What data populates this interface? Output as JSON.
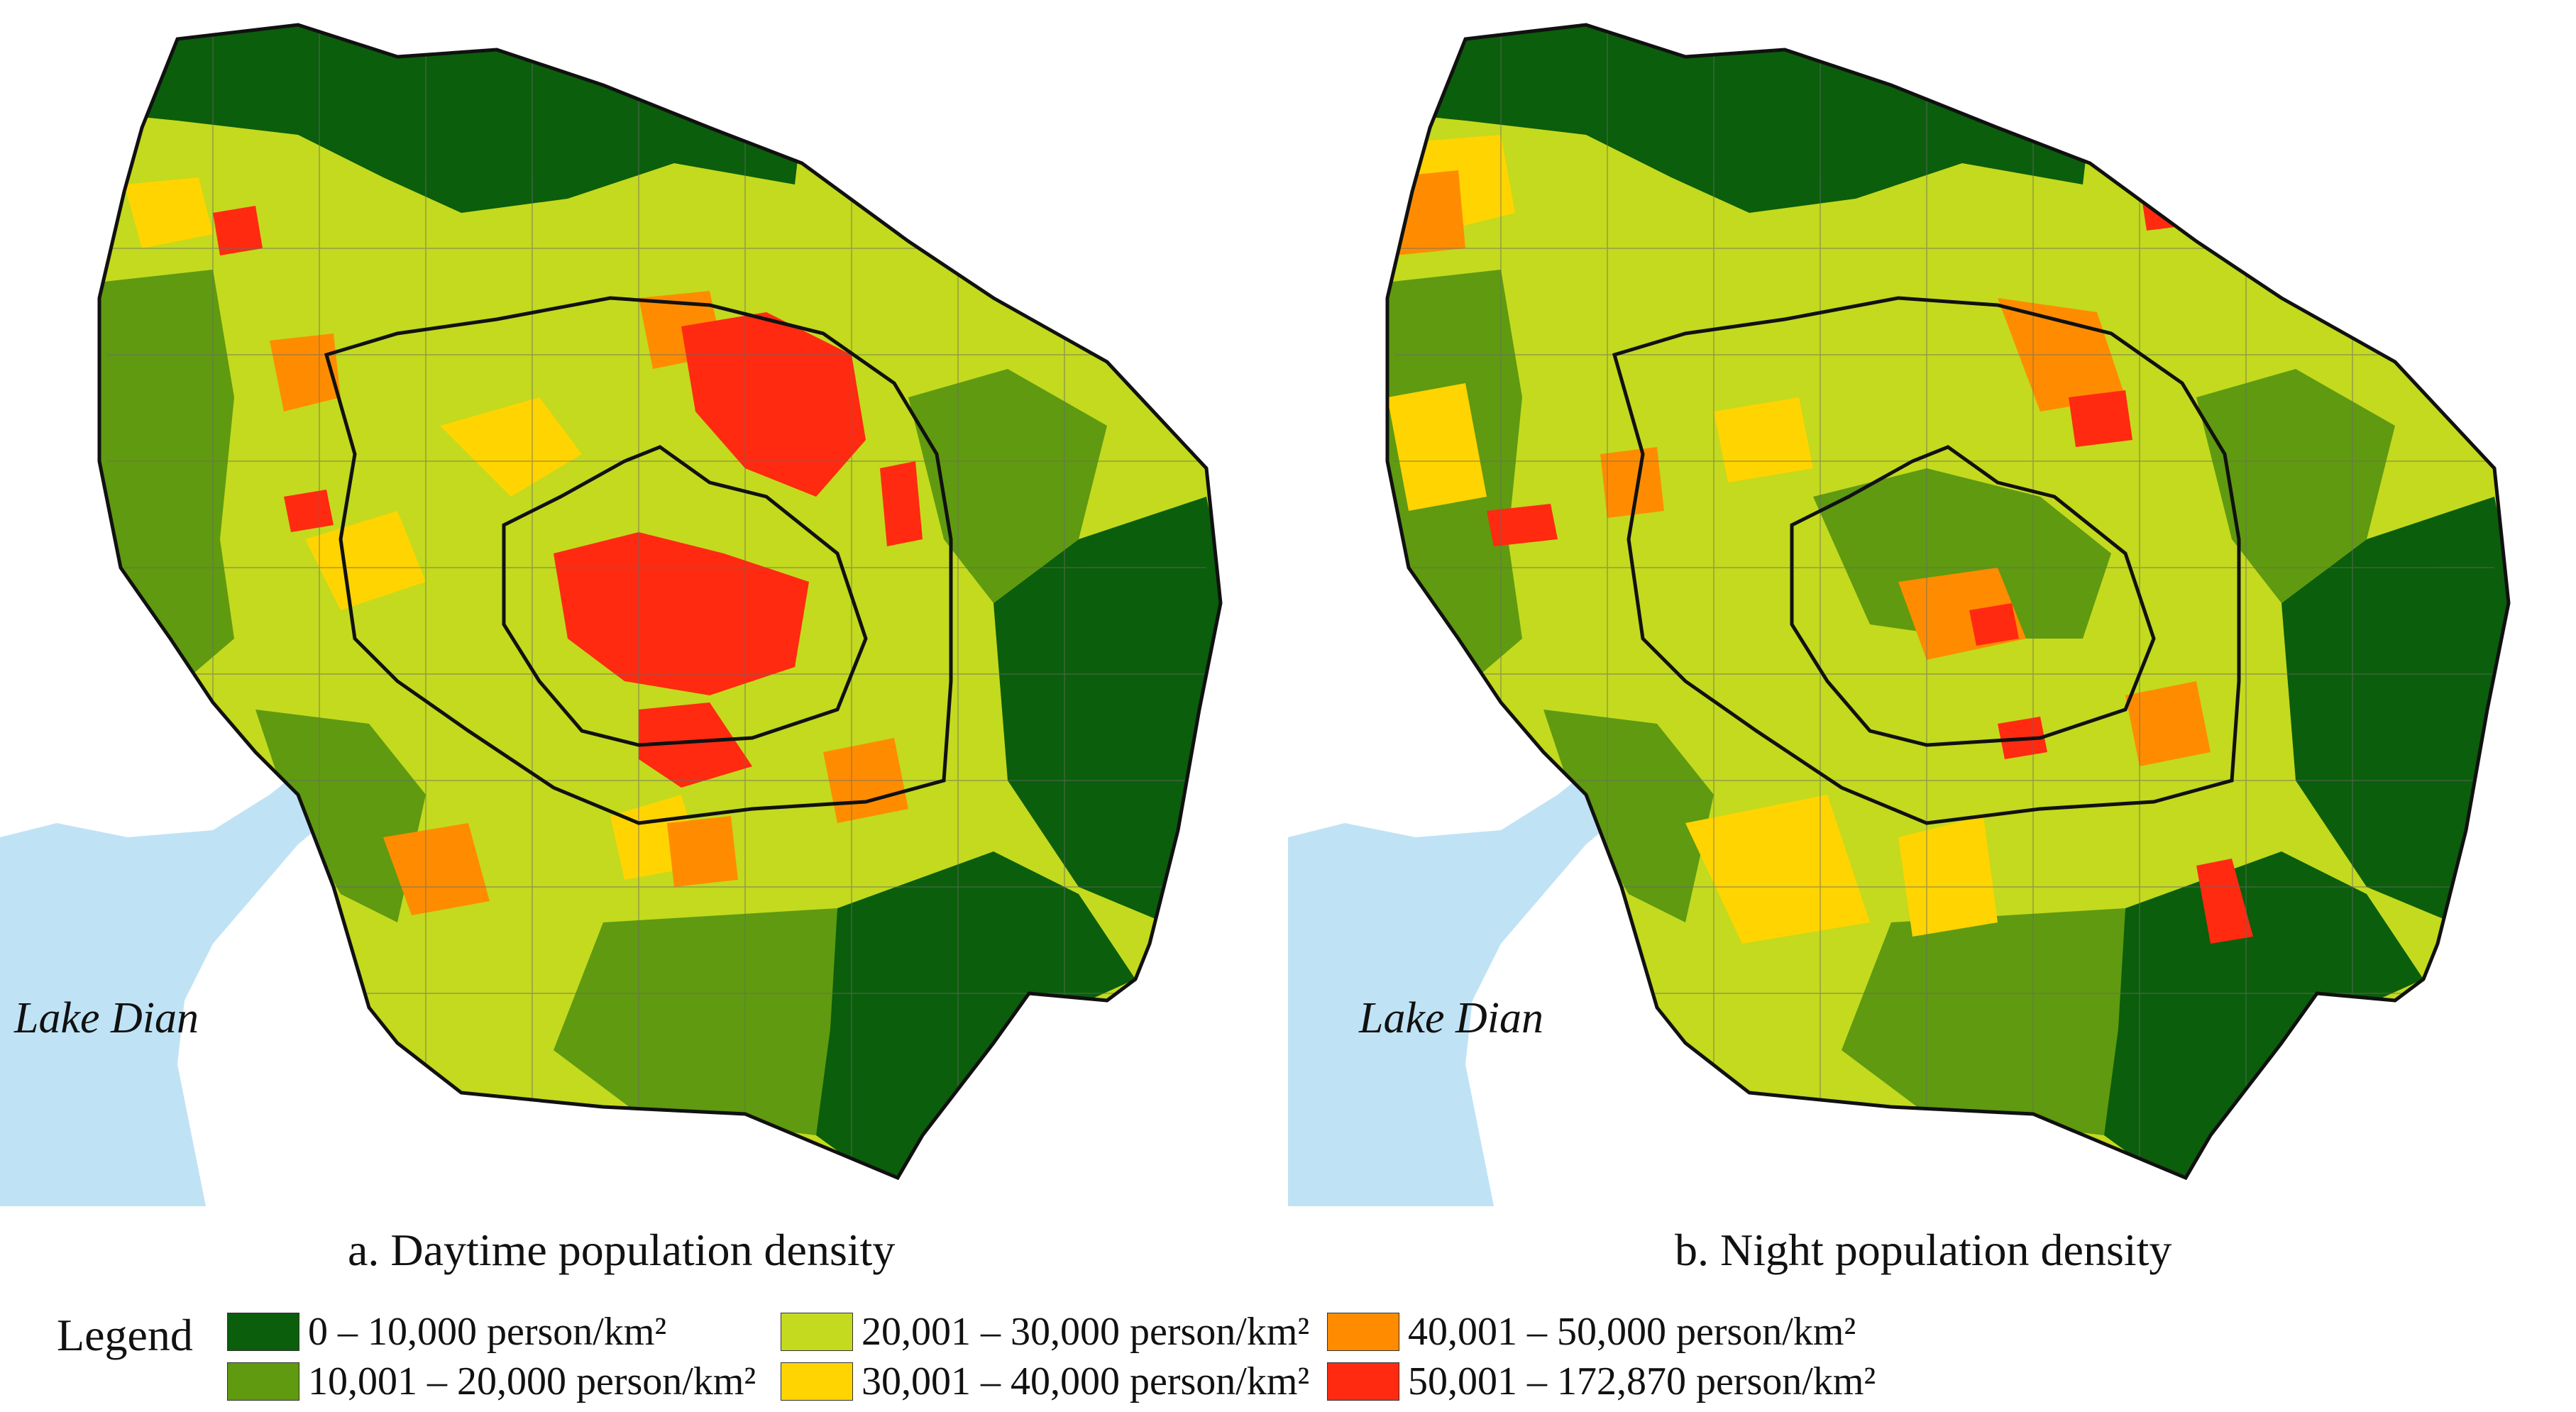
{
  "palette": {
    "c0": "#0b5e0b",
    "c1": "#5f9a10",
    "c2": "#c3da1e",
    "c3": "#ffd400",
    "c4": "#ff8c00",
    "c5": "#ff2a10",
    "lake": "#bfe3f5"
  },
  "maps": [
    {
      "caption": "a. Daytime population density",
      "lake_label": "Lake Dian"
    },
    {
      "caption": "b. Night population density",
      "lake_label": "Lake Dian"
    }
  ],
  "legend": {
    "title": "Legend",
    "items": [
      {
        "label": "0 – 10,000 person/km²",
        "color_key": "c0"
      },
      {
        "label": "10,001 – 20,000 person/km²",
        "color_key": "c1"
      },
      {
        "label": "20,001 – 30,000 person/km²",
        "color_key": "c2"
      },
      {
        "label": "30,001 – 40,000 person/km²",
        "color_key": "c3"
      },
      {
        "label": "40,001 – 50,000 person/km²",
        "color_key": "c4"
      },
      {
        "label": "50,001 – 172,870 person/km²",
        "color_key": "c5"
      }
    ]
  }
}
